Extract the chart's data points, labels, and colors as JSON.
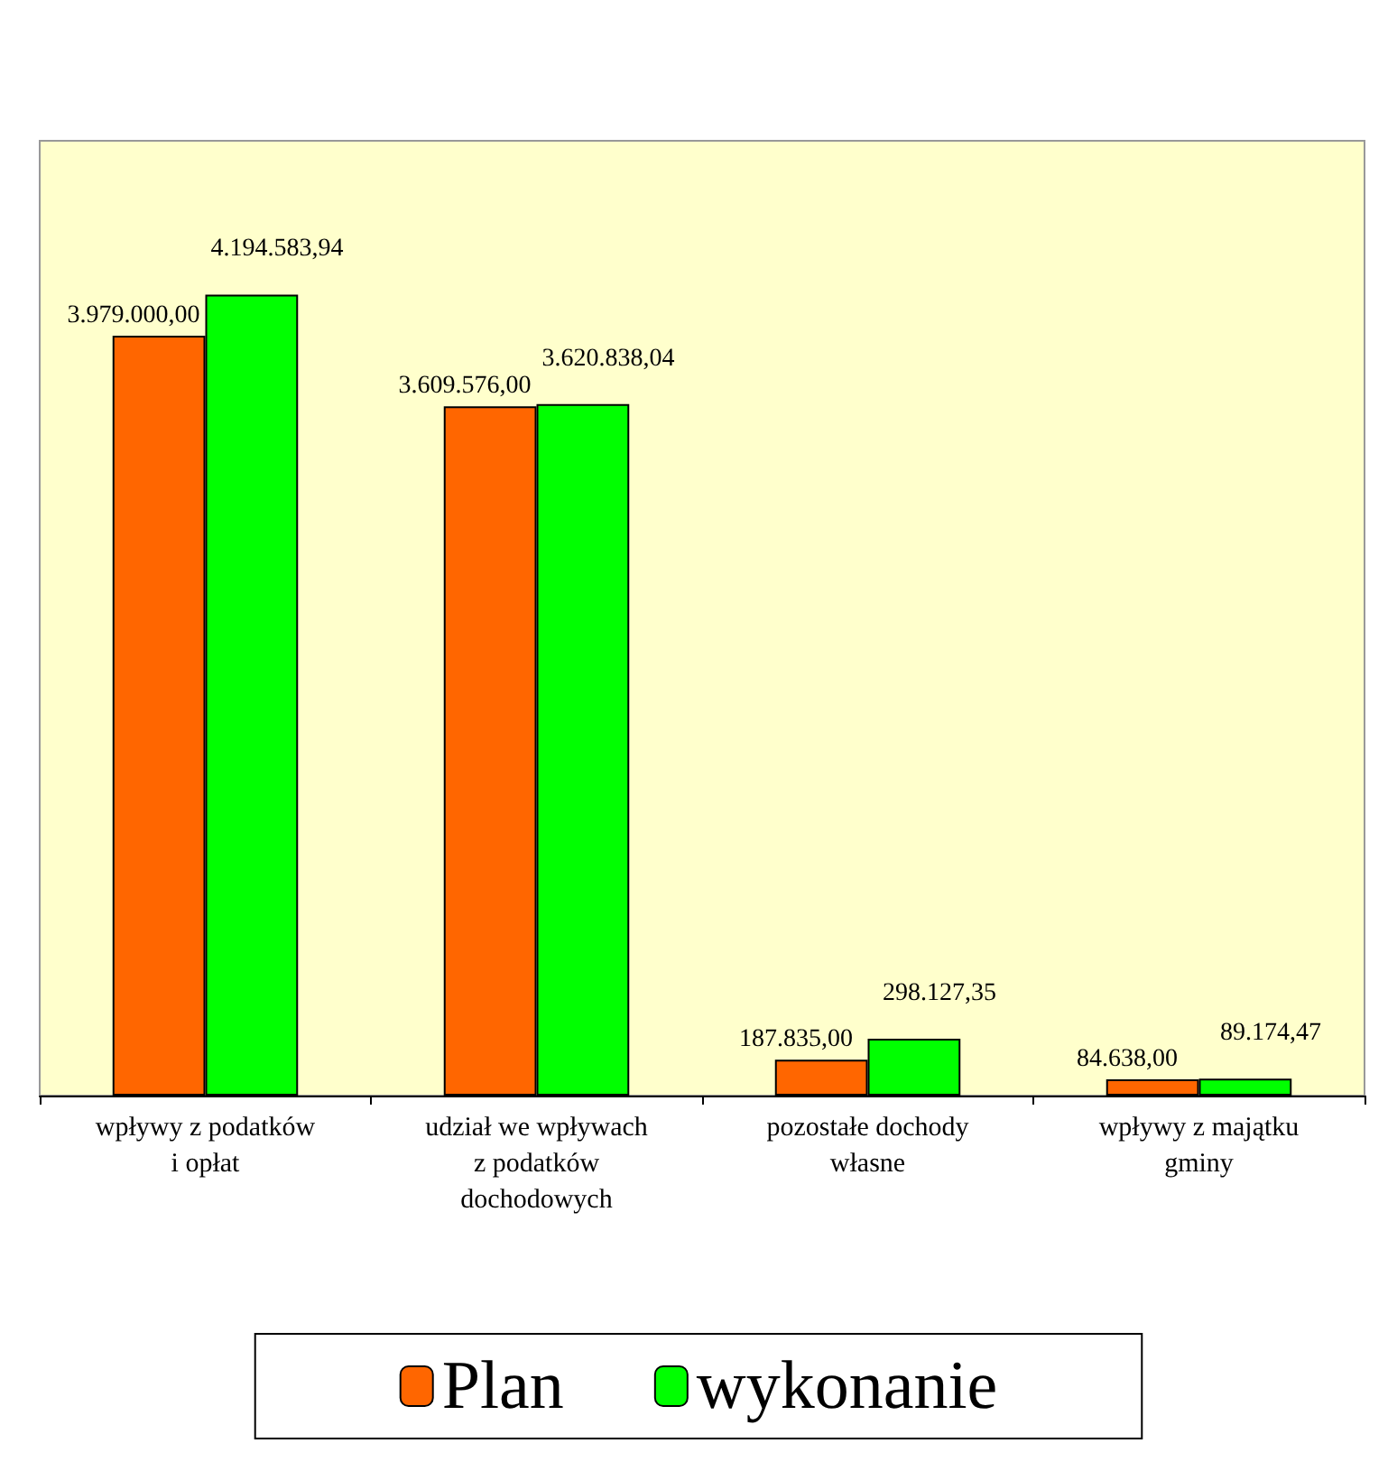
{
  "chart_data": {
    "type": "bar",
    "categories": [
      "wpływy z podatków\ni opłat",
      "udział we wpływach\nz podatków\ndochodowych",
      "pozostałe dochody\nwłasne",
      "wpływy z majątku\ngminy"
    ],
    "series": [
      {
        "name": "Plan",
        "color": "#ff6600",
        "values": [
          3979000.0,
          3609576.0,
          187835.0,
          84638.0
        ],
        "value_labels": [
          "3.979.000,00",
          "3.609.576,00",
          "187.835,00",
          "84.638,00"
        ]
      },
      {
        "name": "wykonanie",
        "color": "#00ff00",
        "values": [
          4194583.94,
          3620838.04,
          298127.35,
          89174.47
        ],
        "value_labels": [
          "4.194.583,94",
          "3.620.838,04",
          "298.127,35",
          "89.174,47"
        ]
      }
    ],
    "legend": "bottom",
    "grid": false,
    "tick_labels": "x"
  }
}
